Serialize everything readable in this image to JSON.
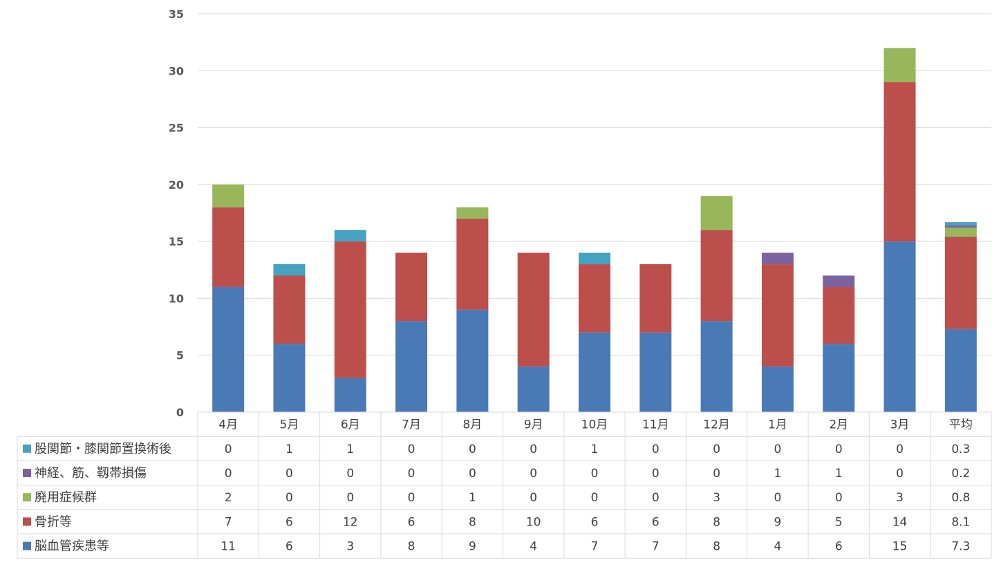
{
  "chart_data": {
    "type": "bar",
    "stacked": true,
    "title": "",
    "xlabel": "",
    "ylabel": "",
    "ylim": [
      0,
      35
    ],
    "yticks": [
      "0",
      "5",
      "10",
      "15",
      "20",
      "25",
      "30",
      "35"
    ],
    "grid": true,
    "legend": "data-table-left",
    "categories": [
      "4月",
      "5月",
      "6月",
      "7月",
      "8月",
      "9月",
      "10月",
      "11月",
      "12月",
      "1月",
      "2月",
      "3月",
      "平均"
    ],
    "series": [
      {
        "name": "脳血管疾患等",
        "color": "#4a7ab5",
        "values": [
          11,
          6,
          3,
          8,
          9,
          4,
          7,
          7,
          8,
          4,
          6,
          15,
          7.3
        ],
        "labels": [
          "11",
          "6",
          "3",
          "8",
          "9",
          "4",
          "7",
          "7",
          "8",
          "4",
          "6",
          "15",
          "7.3"
        ]
      },
      {
        "name": "骨折等",
        "color": "#bc4e4c",
        "values": [
          7,
          6,
          12,
          6,
          8,
          10,
          6,
          6,
          8,
          9,
          5,
          14,
          8.1
        ],
        "labels": [
          "7",
          "6",
          "12",
          "6",
          "8",
          "10",
          "6",
          "6",
          "8",
          "9",
          "5",
          "14",
          "8.1"
        ]
      },
      {
        "name": "廃用症候群",
        "color": "#97b75a",
        "values": [
          2,
          0,
          0,
          0,
          1,
          0,
          0,
          0,
          3,
          0,
          0,
          3,
          0.8
        ],
        "labels": [
          "2",
          "0",
          "0",
          "0",
          "1",
          "0",
          "0",
          "0",
          "3",
          "0",
          "0",
          "3",
          "0.8"
        ]
      },
      {
        "name": "神経、筋、靱帯損傷",
        "color": "#7d62a0",
        "values": [
          0,
          0,
          0,
          0,
          0,
          0,
          0,
          0,
          0,
          1,
          1,
          0,
          0.2
        ],
        "labels": [
          "0",
          "0",
          "0",
          "0",
          "0",
          "0",
          "0",
          "0",
          "0",
          "1",
          "1",
          "0",
          "0.2"
        ]
      },
      {
        "name": "股関節・膝関節置換術後",
        "color": "#45a2c0",
        "values": [
          0,
          1,
          1,
          0,
          0,
          0,
          1,
          0,
          0,
          0,
          0,
          0,
          0.3
        ],
        "labels": [
          "0",
          "1",
          "1",
          "0",
          "0",
          "0",
          "1",
          "0",
          "0",
          "0",
          "0",
          "0",
          "0.3"
        ]
      }
    ]
  }
}
